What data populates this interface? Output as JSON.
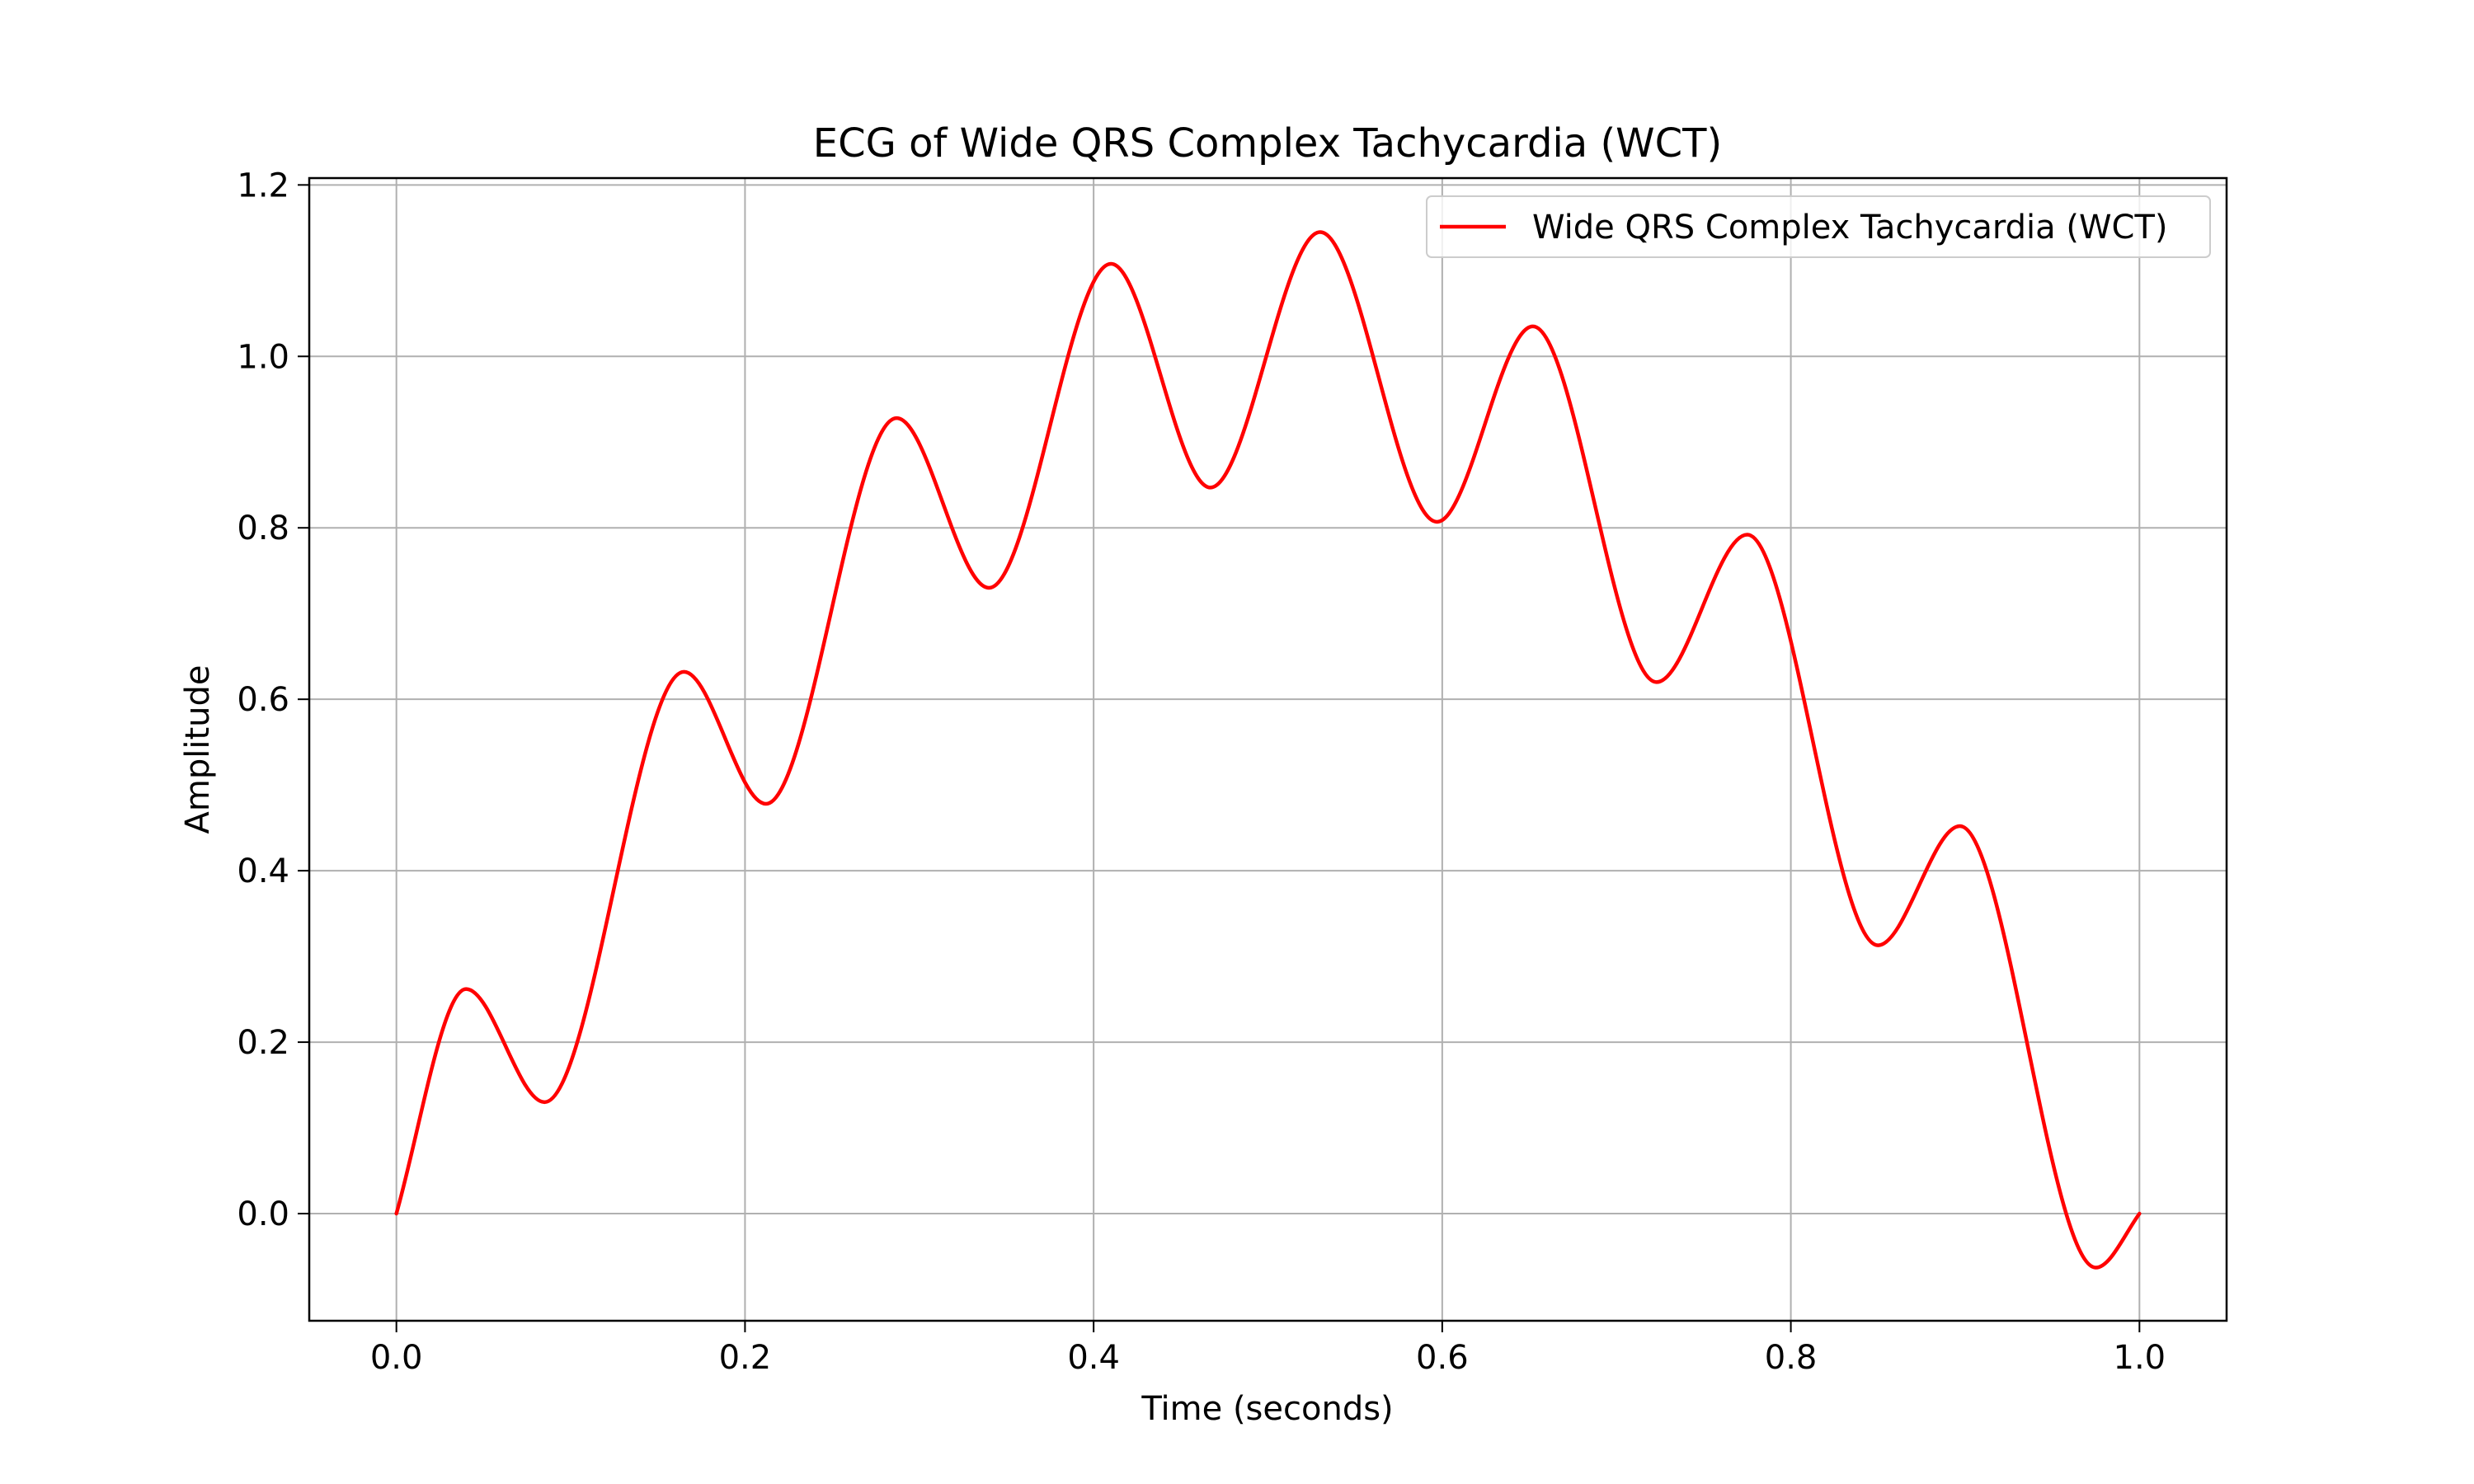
{
  "chart_data": {
    "type": "line",
    "title": "ECG of Wide QRS Complex Tachycardia (WCT)",
    "xlabel": "Time (seconds)",
    "ylabel": "Amplitude",
    "xlim": [
      -0.05,
      1.05
    ],
    "ylim": [
      -0.125,
      1.208
    ],
    "x_ticks": [
      0.0,
      0.2,
      0.4,
      0.6,
      0.8,
      1.0
    ],
    "x_tick_labels": [
      "0.0",
      "0.2",
      "0.4",
      "0.6",
      "0.8",
      "1.0"
    ],
    "y_ticks": [
      0.0,
      0.2,
      0.4,
      0.6,
      0.8,
      1.0,
      1.2
    ],
    "y_tick_labels": [
      "0.0",
      "0.2",
      "0.4",
      "0.6",
      "0.8",
      "1.0",
      "1.2"
    ],
    "grid": true,
    "legend_position": "top-right",
    "series": [
      {
        "name": "Wide QRS Complex Tachycardia (WCT)",
        "color": "#ff0000",
        "x": [
          0.0,
          0.04,
          0.085,
          0.165,
          0.212,
          0.287,
          0.34,
          0.41,
          0.467,
          0.53,
          0.597,
          0.652,
          0.723,
          0.775,
          0.85,
          0.897,
          0.975,
          1.0
        ],
        "y": [
          0.0,
          0.262,
          0.13,
          0.632,
          0.478,
          0.928,
          0.73,
          1.108,
          0.847,
          1.145,
          0.807,
          1.035,
          0.62,
          0.792,
          0.313,
          0.452,
          -0.063,
          0.0
        ]
      }
    ]
  }
}
